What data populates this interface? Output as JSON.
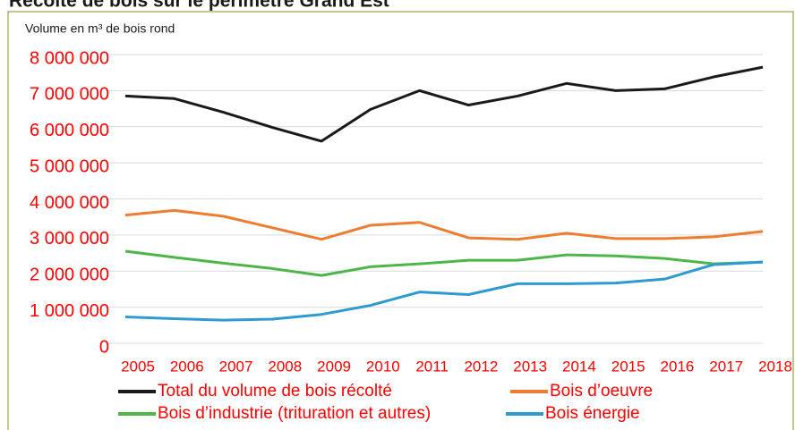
{
  "chart_data": {
    "type": "line",
    "title": "Récolte de bois sur le périmètre Grand Est",
    "y_label": "Volume en m³ de bois rond",
    "categories": [
      "2005",
      "2006",
      "2007",
      "2008",
      "2009",
      "2010",
      "2011",
      "2012",
      "2013",
      "2014",
      "2015",
      "2016",
      "2017",
      "2018"
    ],
    "series": [
      {
        "name": "Total du volume de bois récolté",
        "color": "#1a1a1a",
        "values": [
          6850000,
          6780000,
          6400000,
          5980000,
          5600000,
          6480000,
          7000000,
          6600000,
          6850000,
          7200000,
          7000000,
          7050000,
          7380000,
          7650000
        ]
      },
      {
        "name": "Bois d’oeuvre",
        "color": "#ed7d31",
        "values": [
          3550000,
          3680000,
          3520000,
          3200000,
          2880000,
          3270000,
          3350000,
          2920000,
          2880000,
          3050000,
          2900000,
          2900000,
          2950000,
          3100000
        ]
      },
      {
        "name": "Bois d’industrie (trituration et autres)",
        "color": "#4cb748",
        "values": [
          2550000,
          2380000,
          2220000,
          2070000,
          1880000,
          2120000,
          2200000,
          2300000,
          2300000,
          2450000,
          2420000,
          2350000,
          2200000,
          2250000
        ]
      },
      {
        "name": "Bois énergie",
        "color": "#2e9bd0",
        "values": [
          730000,
          680000,
          640000,
          670000,
          800000,
          1050000,
          1420000,
          1350000,
          1650000,
          1650000,
          1670000,
          1780000,
          2180000,
          2250000
        ]
      }
    ],
    "ylim": [
      0,
      8000000
    ],
    "yticks": [
      {
        "value": 0,
        "label": "0"
      },
      {
        "value": 1000000,
        "label": "1 000 000"
      },
      {
        "value": 2000000,
        "label": "2 000 000"
      },
      {
        "value": 3000000,
        "label": "3 000 000"
      },
      {
        "value": 4000000,
        "label": "4 000 000"
      },
      {
        "value": 5000000,
        "label": "5 000 000"
      },
      {
        "value": 6000000,
        "label": "6 000 000"
      },
      {
        "value": 7000000,
        "label": "7 000 000"
      },
      {
        "value": 8000000,
        "label": "8 000 000"
      }
    ],
    "grid": true,
    "legend": "bottom",
    "tick_color": "#ff0000"
  }
}
